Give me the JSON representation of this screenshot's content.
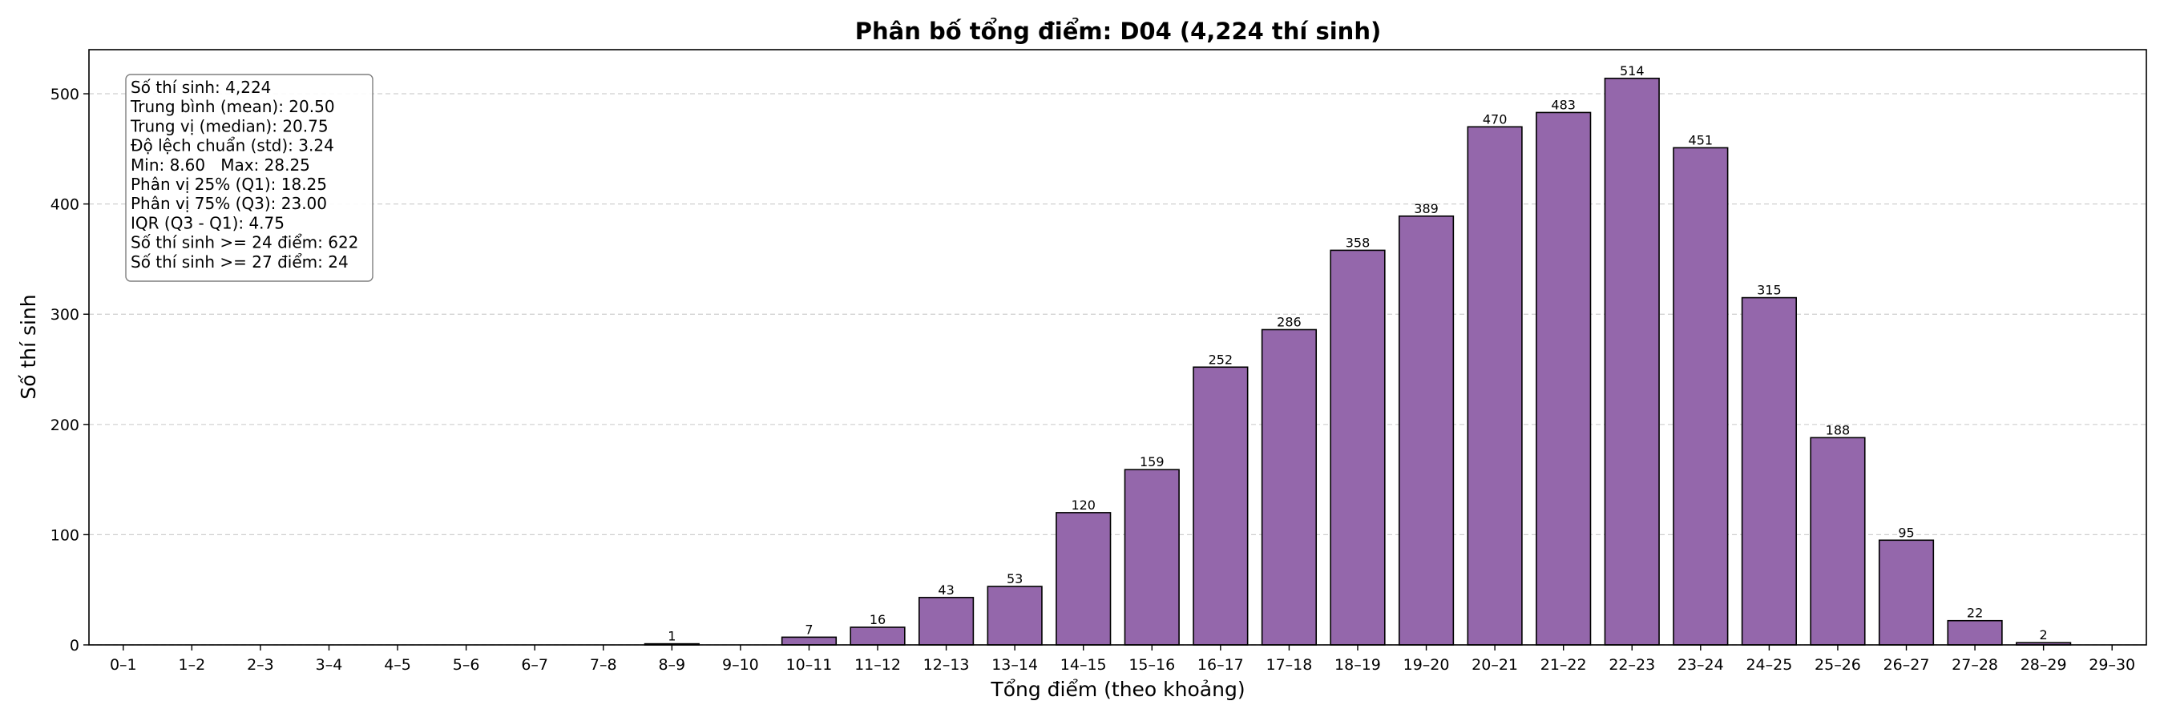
{
  "chart_data": {
    "type": "bar",
    "title": "Phân bố tổng điểm: D04 (4,224 thí sinh)",
    "xlabel": "Tổng điểm (theo khoảng)",
    "ylabel": "Số thí sinh",
    "ylim": [
      0,
      540
    ],
    "yticks": [
      0,
      100,
      200,
      300,
      400,
      500
    ],
    "grid": "y-dashed",
    "bar_color": "#9467ab",
    "bar_edge_color": "#000000",
    "categories": [
      "0–1",
      "1–2",
      "2–3",
      "3–4",
      "4–5",
      "5–6",
      "6–7",
      "7–8",
      "8–9",
      "9–10",
      "10–11",
      "11–12",
      "12–13",
      "13–14",
      "14–15",
      "15–16",
      "16–17",
      "17–18",
      "18–19",
      "19–20",
      "20–21",
      "21–22",
      "22–23",
      "23–24",
      "24–25",
      "25–26",
      "26–27",
      "27–28",
      "28–29",
      "29–30"
    ],
    "values": [
      0,
      0,
      0,
      0,
      0,
      0,
      0,
      0,
      1,
      0,
      7,
      16,
      43,
      53,
      120,
      159,
      252,
      286,
      358,
      389,
      470,
      483,
      514,
      451,
      315,
      188,
      95,
      22,
      2,
      0
    ],
    "data_labels": [
      "",
      "",
      "",
      "",
      "",
      "",
      "",
      "",
      "1",
      "",
      "7",
      "16",
      "43",
      "53",
      "120",
      "159",
      "252",
      "286",
      "358",
      "389",
      "470",
      "483",
      "514",
      "451",
      "315",
      "188",
      "95",
      "22",
      "2",
      ""
    ],
    "stats_box": [
      "Số thí sinh: 4,224",
      "Trung bình (mean): 20.50",
      "Trung vị (median): 20.75",
      "Độ lệch chuẩn (std): 3.24",
      "Min: 8.60   Max: 28.25",
      "Phân vị 25% (Q1): 18.25",
      "Phân vị 75% (Q3): 23.00",
      "IQR (Q3 - Q1): 4.75",
      "Số thí sinh >= 24 điểm: 622",
      "Số thí sinh >= 27 điểm: 24"
    ]
  }
}
